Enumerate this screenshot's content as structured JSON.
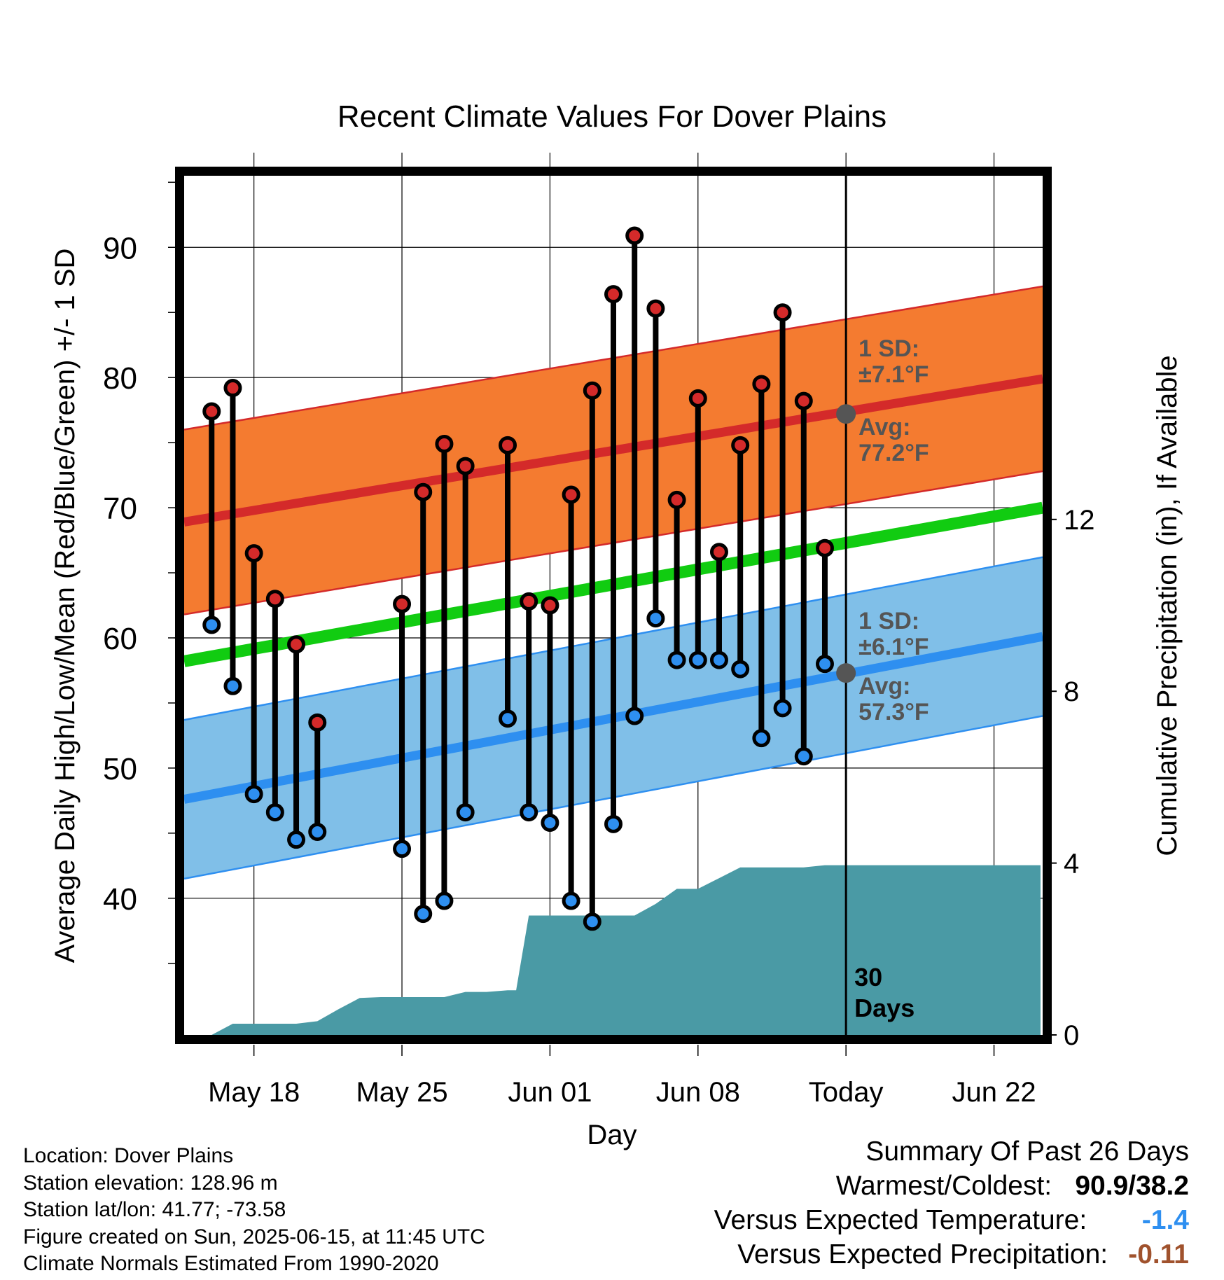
{
  "chart_data": {
    "type": "line",
    "title": "Recent Climate Values For Dover Plains",
    "xlabel": "Day",
    "ylabel": "Average Daily High/Low/Mean (Red/Blue/Green) +/- 1 SD",
    "y2label": "Cumulative Precipitation (in), If Available",
    "x_tick_labels": [
      "May 18",
      "May 25",
      "Jun 01",
      "Jun 08",
      "Today",
      "Jun 22"
    ],
    "x_tick_days": [
      -28,
      -21,
      -14,
      -7,
      0,
      7
    ],
    "xlim": [
      -31.3,
      9.3
    ],
    "ylim": [
      29.5,
      95.5
    ],
    "y_ticks": [
      40,
      50,
      60,
      70,
      80,
      90
    ],
    "y2lim": [
      0,
      20
    ],
    "y2_ticks": [
      0,
      4,
      8,
      12
    ],
    "grid": true,
    "today_day": 0,
    "today_label": "30\nDays",
    "days": [
      -30,
      -29,
      -28,
      -27,
      -26,
      -25,
      -24,
      -21,
      -20,
      -19,
      -18,
      -16,
      -15,
      -14,
      -13,
      -12,
      -11,
      -10,
      -9,
      -8,
      -7,
      -6,
      -5,
      -4,
      -3,
      -2,
      -1
    ],
    "series": [
      {
        "name": "High",
        "color": "#d42a2a",
        "values": [
          77.4,
          79.2,
          66.5,
          63.0,
          59.5,
          53.5,
          null,
          62.6,
          71.2,
          74.9,
          73.2,
          74.8,
          62.8,
          62.5,
          71.0,
          79.0,
          86.4,
          90.9,
          85.3,
          70.6,
          78.4,
          66.6,
          74.8,
          79.5,
          85.0,
          78.2,
          66.9
        ]
      },
      {
        "name": "Low",
        "color": "#2e8ff0",
        "values": [
          61.0,
          56.3,
          48.0,
          46.6,
          44.5,
          45.1,
          null,
          43.8,
          38.8,
          39.8,
          46.6,
          53.8,
          46.6,
          45.8,
          39.8,
          38.2,
          45.7,
          54.0,
          61.5,
          58.3,
          58.3,
          58.3,
          57.6,
          52.3,
          54.6,
          50.9,
          58.0
        ]
      }
    ],
    "normals": {
      "high_avg_start": 68.9,
      "high_avg_end": 79.9,
      "high_sd": 7.1,
      "low_avg_start": 47.6,
      "low_avg_end": 60.1,
      "low_sd": 6.1,
      "mean_start": 58.2,
      "mean_end": 70.0,
      "today_high_avg": 77.2,
      "today_low_avg": 57.3
    },
    "precip": {
      "days": [
        -31.2,
        -30,
        -29,
        -28,
        -27,
        -26,
        -25,
        -24,
        -23,
        -22,
        -21,
        -20,
        -19,
        -18,
        -17,
        -16,
        -15.6,
        -15,
        -14,
        -13,
        -12,
        -11,
        -10,
        -9,
        -8,
        -7,
        -6,
        -5,
        -4,
        -3,
        -2,
        -1,
        0,
        9.2
      ],
      "values": [
        0,
        0,
        0.26,
        0.26,
        0.26,
        0.26,
        0.32,
        0.6,
        0.86,
        0.88,
        0.88,
        0.88,
        0.88,
        1.0,
        1.0,
        1.04,
        1.04,
        2.78,
        2.78,
        2.78,
        2.78,
        2.78,
        2.78,
        3.05,
        3.4,
        3.4,
        3.65,
        3.9,
        3.9,
        3.9,
        3.9,
        3.95,
        3.95,
        3.95
      ],
      "color": "#4a9aa5"
    },
    "colors": {
      "high_band": "#f47b30",
      "low_band": "#80bfe8",
      "mean_line": "#11cc11",
      "high_line": "#d42a2a",
      "low_line": "#2e8ff0",
      "annotation": "#555555"
    },
    "annotations": {
      "high_sd_label": "1 SD:",
      "high_sd_value": "±7.1°F",
      "high_avg_label": "Avg:",
      "high_avg_value": "77.2°F",
      "low_sd_label": "1 SD:",
      "low_sd_value": "±6.1°F",
      "low_avg_label": "Avg:",
      "low_avg_value": "57.3°F"
    }
  },
  "metadata": {
    "location": "Location: Dover Plains",
    "elevation": "Station elevation: 128.96 m",
    "latlon": "Station lat/lon: 41.77; -73.58",
    "created": "Figure created on Sun, 2025-06-15, at 11:45 UTC",
    "normals": "Climate Normals Estimated From 1990-2020"
  },
  "summary": {
    "title": "Summary Of Past 26 Days",
    "warmest_label": "Warmest/Coldest:",
    "warmest_value": "90.9/38.2",
    "temp_label": "Versus Expected Temperature:",
    "temp_value": "-1.4",
    "temp_color": "#2e8ff0",
    "precip_label": "Versus Expected Precipitation:",
    "precip_value": "-0.11",
    "precip_color": "#a0522d"
  }
}
